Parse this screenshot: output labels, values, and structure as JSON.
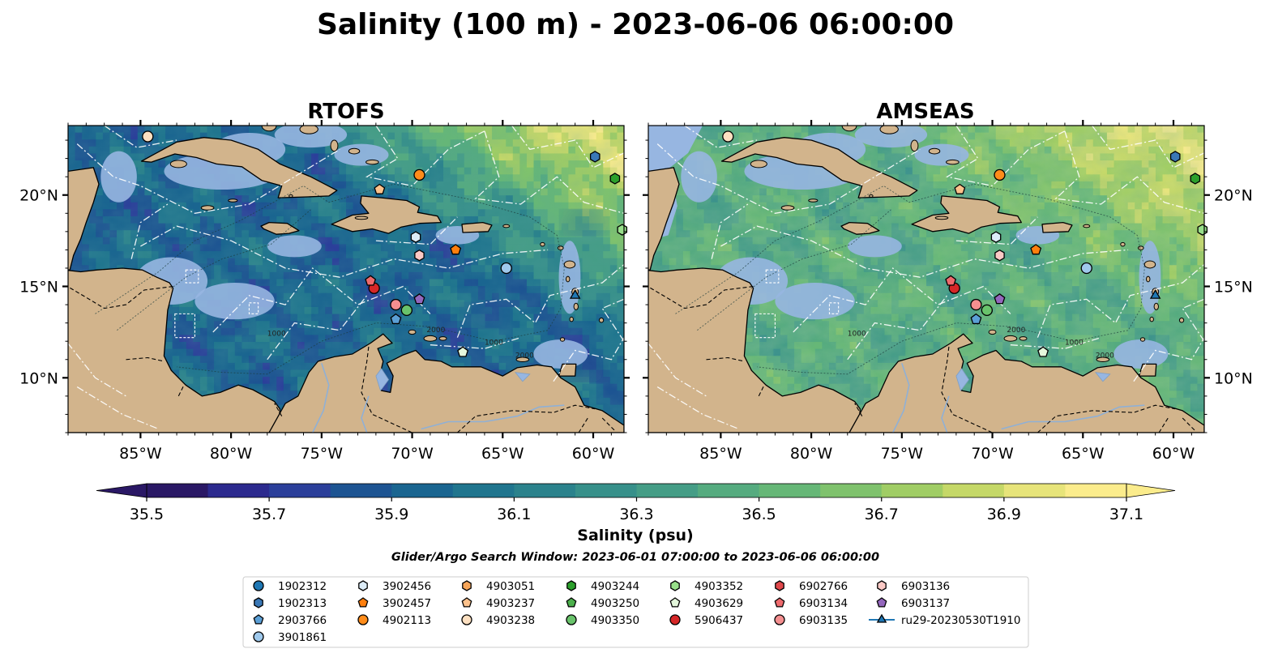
{
  "figure": {
    "title": "Salinity (100 m) - 2023-06-06 06:00:00",
    "search_window": "Glider/Argo Search Window: 2023-06-01 07:00:00 to 2023-06-06 06:00:00"
  },
  "colors": {
    "land": "#d2b48c",
    "ocean_mask": "#97b6e1",
    "coast": "#000000",
    "deep_outside": "#2b176b",
    "colormap": [
      "#2a1865",
      "#2c2a8e",
      "#2b3f9a",
      "#1d5492",
      "#1a6590",
      "#20758e",
      "#2b828c",
      "#37908a",
      "#459d86",
      "#55ab7f",
      "#66b777",
      "#7fc26d",
      "#a0cd65",
      "#c5d868",
      "#e7e47a",
      "#fbec8c"
    ]
  },
  "chart_data": [
    {
      "type": "heatmap",
      "title": "RTOFS",
      "variable": "Salinity (psu) at 100 m",
      "xlim": [
        -89.0,
        -58.3
      ],
      "ylim": [
        7.0,
        23.8
      ],
      "x_ticks": [
        -85,
        -80,
        -75,
        -70,
        -65,
        -60
      ],
      "x_tick_labels": [
        "85°W",
        "80°W",
        "75°W",
        "70°W",
        "65°W",
        "60°W"
      ],
      "y_ticks": [
        10,
        15,
        20
      ],
      "y_tick_labels": [
        "10°N",
        "15°N",
        "20°N"
      ],
      "y_labels_side": "left",
      "field_tendency": "mostly 35.8–36.3 psu in the Caribbean basin; 36.6–37.1 psu northeast of the Antilles; 35.5 psu Pacific"
    },
    {
      "type": "heatmap",
      "title": "AMSEAS",
      "variable": "Salinity (psu) at 100 m",
      "xlim": [
        -89.0,
        -58.3
      ],
      "ylim": [
        7.0,
        23.8
      ],
      "x_ticks": [
        -85,
        -80,
        -75,
        -70,
        -65,
        -60
      ],
      "x_tick_labels": [
        "85°W",
        "80°W",
        "75°W",
        "70°W",
        "65°W",
        "60°W"
      ],
      "y_ticks": [
        10,
        15,
        20
      ],
      "y_tick_labels": [
        "10°N",
        "15°N",
        "20°N"
      ],
      "y_labels_side": "right",
      "field_tendency": "mostly 36.3–36.8 psu in the Caribbean basin; 36.7–37.1 psu northeast; Pacific masked"
    }
  ],
  "colorbar": {
    "label": "Salinity (psu)",
    "min": 35.5,
    "max": 37.1,
    "step": 0.1,
    "extend": "both",
    "ticks": [
      35.5,
      35.7,
      35.9,
      36.1,
      36.3,
      36.5,
      36.7,
      36.9,
      37.1
    ],
    "tick_labels": [
      "35.5",
      "35.7",
      "35.9",
      "36.1",
      "36.3",
      "36.5",
      "36.7",
      "36.9",
      "37.1"
    ]
  },
  "contour_labels": [
    "1000",
    "2000",
    "1000",
    "2000"
  ],
  "platforms": [
    {
      "id": "1902312",
      "marker": "circle",
      "color": "#1f77b4",
      "lon": null,
      "lat": null
    },
    {
      "id": "1902313",
      "marker": "hexagon",
      "color": "#3a78b6",
      "lon": -59.9,
      "lat": 22.1
    },
    {
      "id": "2903766",
      "marker": "pentagon",
      "color": "#5b9fd6",
      "lon": -70.9,
      "lat": 13.2
    },
    {
      "id": "3901861",
      "marker": "circle",
      "color": "#9fc9ec",
      "lon": -64.8,
      "lat": 16.0
    },
    {
      "id": "3902456",
      "marker": "hexagon",
      "color": "#dcecf7",
      "lon": -69.8,
      "lat": 17.7
    },
    {
      "id": "3902457",
      "marker": "pentagon",
      "color": "#ff7f0e",
      "lon": -67.6,
      "lat": 17.0
    },
    {
      "id": "4902113",
      "marker": "circle",
      "color": "#ff8c1a",
      "lon": -69.6,
      "lat": 21.1
    },
    {
      "id": "4903051",
      "marker": "hexagon",
      "color": "#f7a65a",
      "lon": null,
      "lat": null
    },
    {
      "id": "4903237",
      "marker": "pentagon",
      "color": "#fdc28c",
      "lon": -71.8,
      "lat": 20.3
    },
    {
      "id": "4903238",
      "marker": "circle",
      "color": "#fde0c1",
      "lon": -84.6,
      "lat": 23.2
    },
    {
      "id": "4903244",
      "marker": "hexagon",
      "color": "#2ca02c",
      "lon": -58.8,
      "lat": 20.9
    },
    {
      "id": "4903250",
      "marker": "pentagon",
      "color": "#4cb04c",
      "lon": null,
      "lat": null
    },
    {
      "id": "4903350",
      "marker": "circle",
      "color": "#69c36b",
      "lon": -70.3,
      "lat": 13.7
    },
    {
      "id": "4903352",
      "marker": "hexagon",
      "color": "#98df8a",
      "lon": -58.4,
      "lat": 18.1
    },
    {
      "id": "4903629",
      "marker": "pentagon",
      "color": "#e4f7dc",
      "lon": -67.2,
      "lat": 11.4
    },
    {
      "id": "5906437",
      "marker": "circle",
      "color": "#d62728",
      "lon": -72.1,
      "lat": 14.9
    },
    {
      "id": "6902766",
      "marker": "hexagon",
      "color": "#e0484b",
      "lon": null,
      "lat": null
    },
    {
      "id": "6903134",
      "marker": "pentagon",
      "color": "#ee6a6d",
      "lon": -72.3,
      "lat": 15.3
    },
    {
      "id": "6903135",
      "marker": "circle",
      "color": "#f48f90",
      "lon": -70.9,
      "lat": 14.0
    },
    {
      "id": "6903136",
      "marker": "hexagon",
      "color": "#fbc9c5",
      "lon": -69.6,
      "lat": 16.7
    },
    {
      "id": "6903137",
      "marker": "pentagon",
      "color": "#9467bd",
      "lon": -69.6,
      "lat": 14.3
    },
    {
      "id": "ru29-20230530T1910",
      "marker": "triangle",
      "color": "#1f77b4",
      "lon": -61.0,
      "lat": 14.5,
      "line": true
    }
  ]
}
